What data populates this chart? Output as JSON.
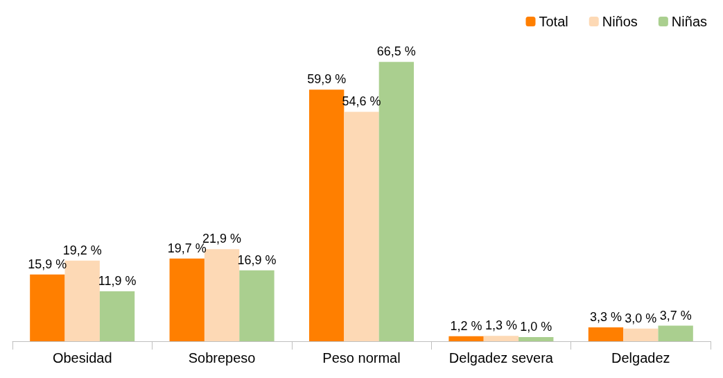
{
  "chart_data": {
    "type": "bar",
    "categories": [
      "Obesidad",
      "Sobrepeso",
      "Peso normal",
      "Delgadez severa",
      "Delgadez"
    ],
    "series": [
      {
        "name": "Total",
        "color": "#ff7f00",
        "values": [
          15.9,
          19.7,
          59.9,
          1.2,
          3.3
        ],
        "value_labels": [
          "15,9 %",
          "19,7 %",
          "59,9 %",
          "1,2 %",
          "3,3 %"
        ]
      },
      {
        "name": "Niños",
        "color": "#fdd9b5",
        "values": [
          19.2,
          21.9,
          54.6,
          1.3,
          3.0
        ],
        "value_labels": [
          "19,2 %",
          "21,9 %",
          "54,6 %",
          "1,3 %",
          "3,0 %"
        ]
      },
      {
        "name": "Niñas",
        "color": "#aacf8f",
        "values": [
          11.9,
          16.9,
          66.5,
          1.0,
          3.7
        ],
        "value_labels": [
          "11,9 %",
          "16,9 %",
          "66,5 %",
          "1,0 %",
          "3,7 %"
        ]
      }
    ],
    "legend": "top right",
    "grid": false
  }
}
